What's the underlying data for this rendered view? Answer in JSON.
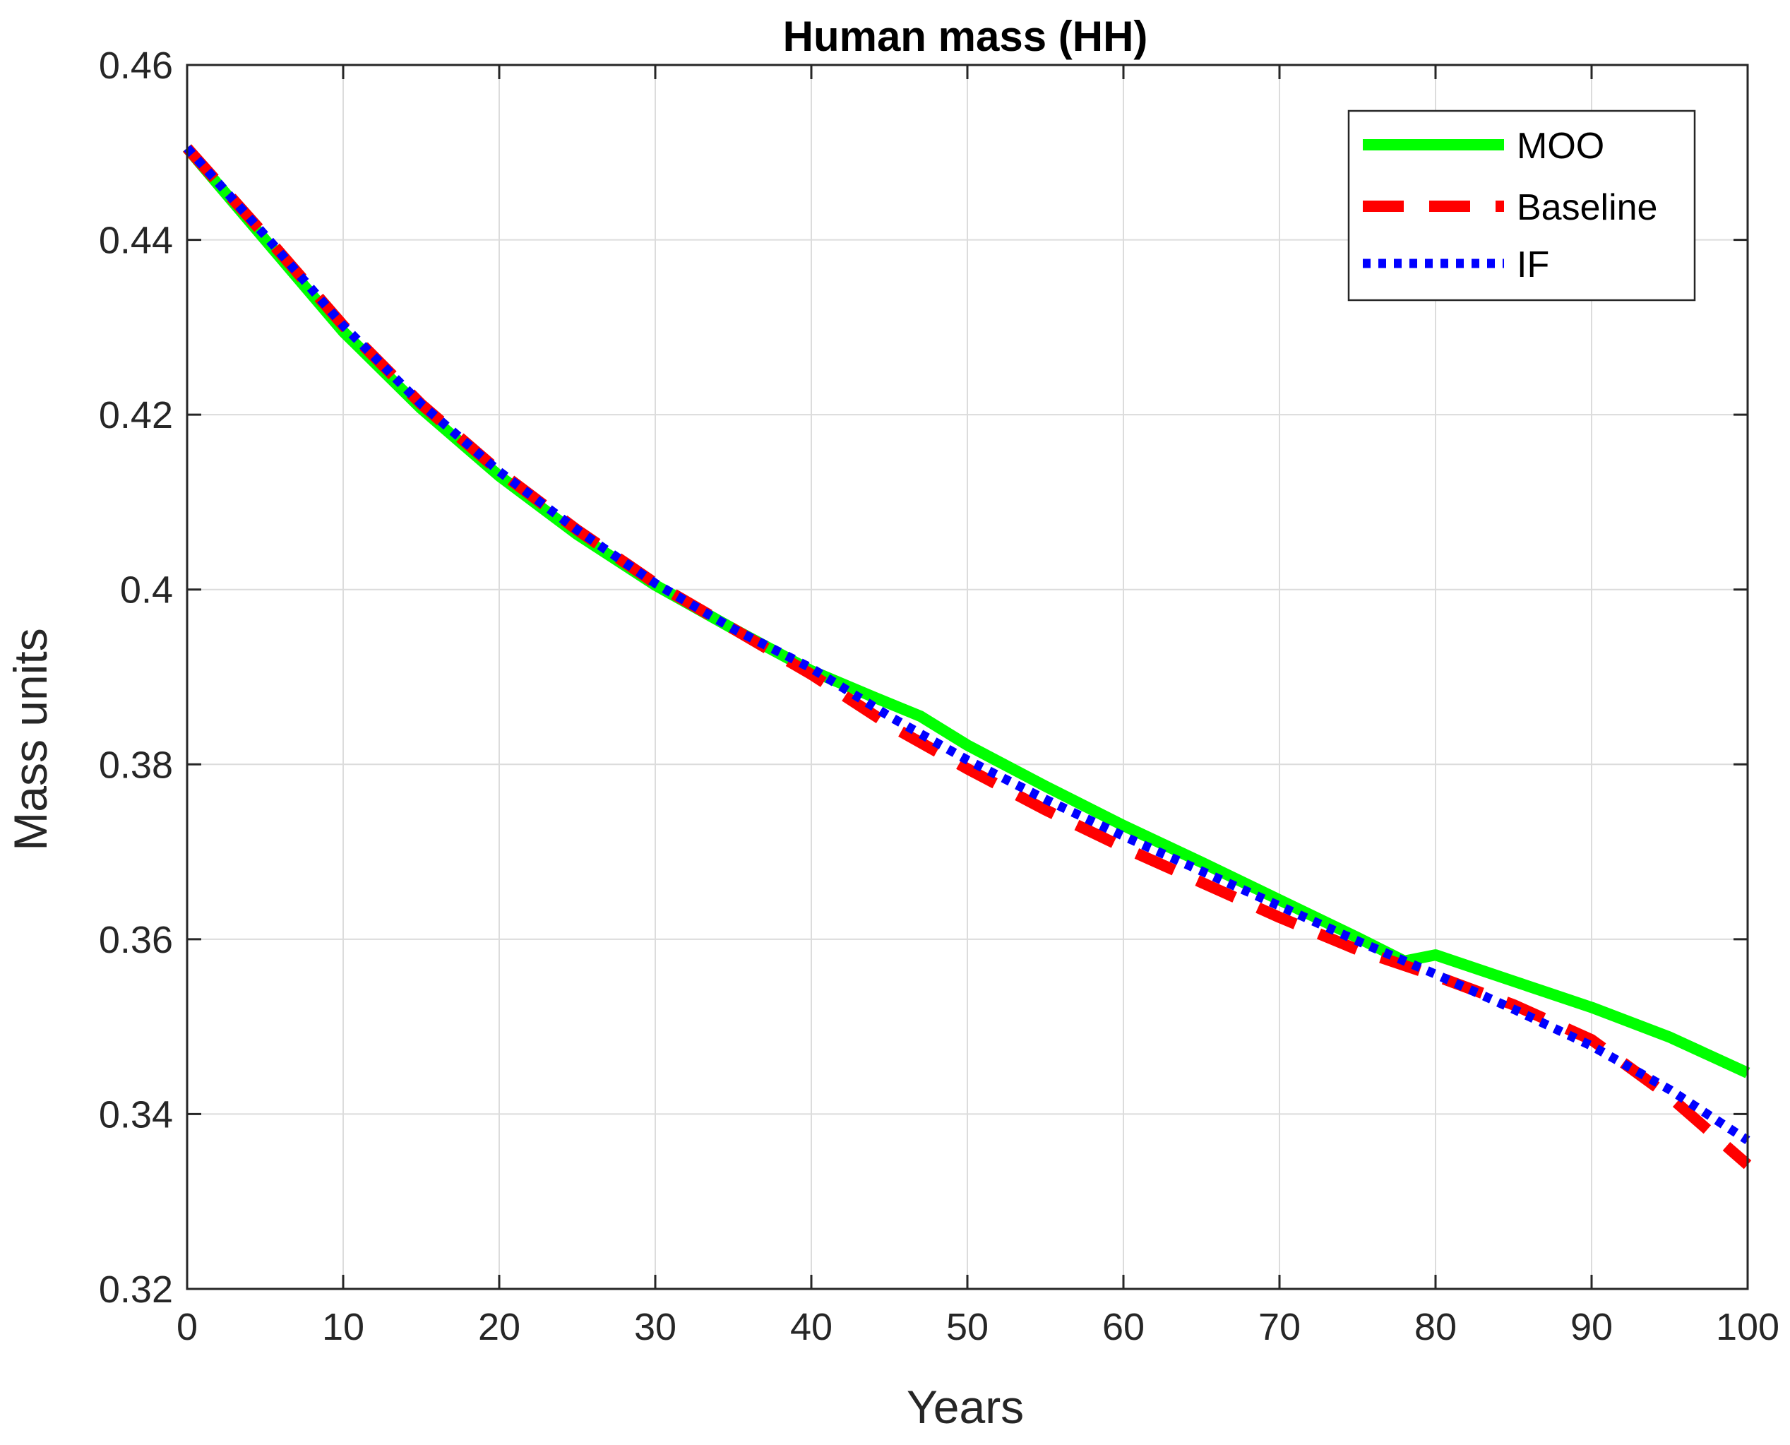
{
  "chart_data": {
    "type": "line",
    "title": "Human mass (HH)",
    "xlabel": "Years",
    "ylabel": "Mass units",
    "xlim": [
      0,
      100
    ],
    "ylim": [
      0.32,
      0.46
    ],
    "xticks": [
      "0",
      "10",
      "20",
      "30",
      "40",
      "50",
      "60",
      "70",
      "80",
      "90",
      "100"
    ],
    "yticks": [
      "0.32",
      "0.34",
      "0.36",
      "0.38",
      "0.4",
      "0.42",
      "0.44",
      "0.46"
    ],
    "grid": true,
    "legend_position": "top-right",
    "series": [
      {
        "name": "MOO",
        "color": "#00ff00",
        "style": "solid",
        "x": [
          0,
          5,
          10,
          15,
          20,
          25,
          30,
          35,
          40,
          44,
          47,
          50,
          55,
          60,
          65,
          70,
          75,
          78,
          80,
          85,
          90,
          95,
          100
        ],
        "y": [
          0.4505,
          0.44,
          0.4295,
          0.4207,
          0.413,
          0.4063,
          0.4005,
          0.3955,
          0.3907,
          0.3877,
          0.3855,
          0.3822,
          0.3775,
          0.373,
          0.3688,
          0.3645,
          0.3602,
          0.3575,
          0.3582,
          0.3552,
          0.3522,
          0.3488,
          0.3447
        ]
      },
      {
        "name": "Baseline",
        "color": "#ff0000",
        "style": "dashed",
        "x": [
          0,
          5,
          10,
          15,
          20,
          25,
          30,
          35,
          40,
          45,
          50,
          55,
          60,
          65,
          70,
          75,
          80,
          85,
          90,
          95,
          100
        ],
        "y": [
          0.4505,
          0.4405,
          0.4302,
          0.4212,
          0.4135,
          0.4068,
          0.4007,
          0.3955,
          0.3903,
          0.3845,
          0.3795,
          0.3748,
          0.3705,
          0.3665,
          0.3625,
          0.3588,
          0.3558,
          0.3525,
          0.3485,
          0.342,
          0.3342
        ]
      },
      {
        "name": "IF",
        "color": "#0000ff",
        "style": "dotted",
        "x": [
          0,
          5,
          10,
          15,
          20,
          25,
          30,
          35,
          40,
          45,
          50,
          55,
          60,
          65,
          70,
          75,
          80,
          85,
          90,
          95,
          100
        ],
        "y": [
          0.4505,
          0.4405,
          0.4302,
          0.4212,
          0.4135,
          0.4068,
          0.4007,
          0.3955,
          0.391,
          0.3855,
          0.3805,
          0.376,
          0.3718,
          0.3678,
          0.3638,
          0.3598,
          0.356,
          0.352,
          0.3478,
          0.3428,
          0.337
        ]
      }
    ]
  }
}
